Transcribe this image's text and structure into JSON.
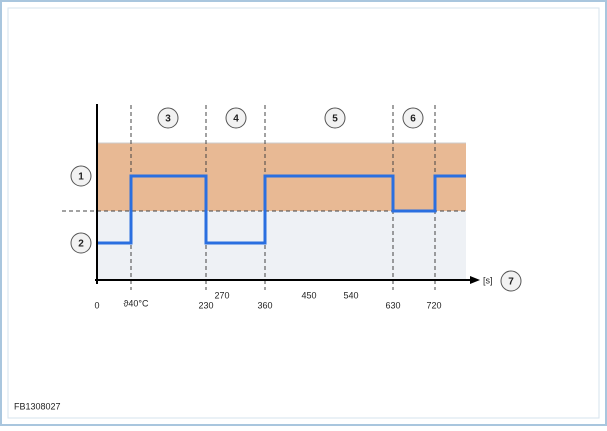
{
  "callouts": [
    "1",
    "2",
    "3",
    "4",
    "5",
    "6",
    "7"
  ],
  "x_axis": {
    "labels": [
      "0",
      "ϑ40°C",
      "230",
      "270",
      "360",
      "450",
      "540",
      "630",
      "720"
    ],
    "unit": "[s]"
  },
  "figure_code": "FB1308027"
}
